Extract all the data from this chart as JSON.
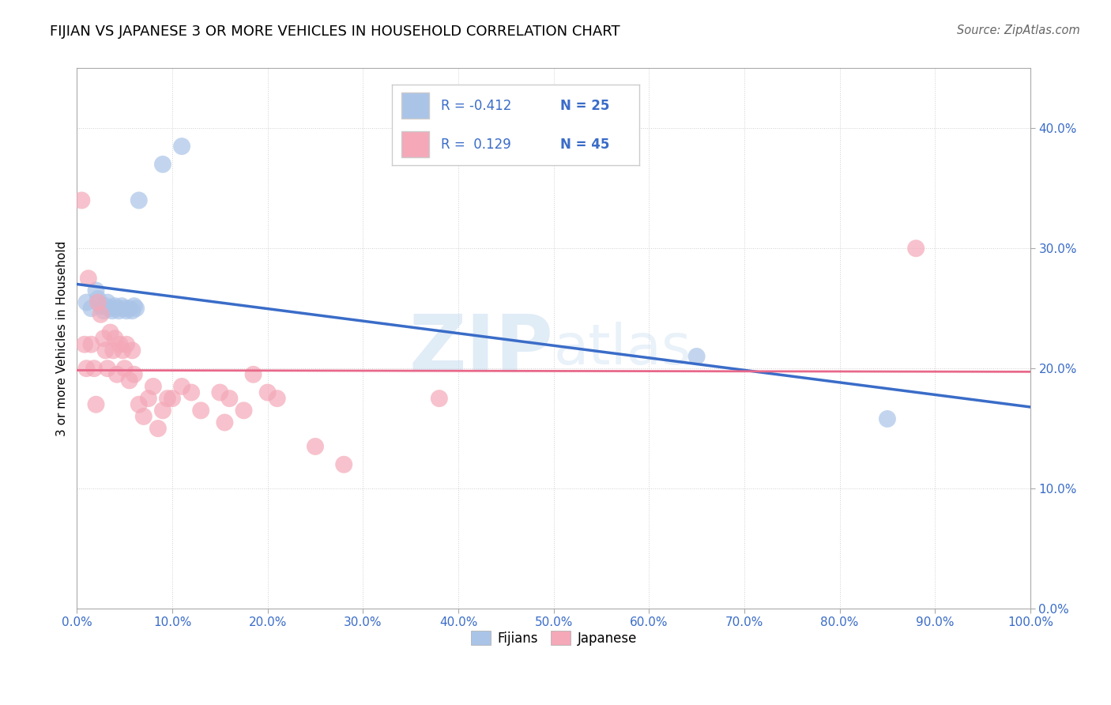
{
  "title": "FIJIAN VS JAPANESE 3 OR MORE VEHICLES IN HOUSEHOLD CORRELATION CHART",
  "source": "Source: ZipAtlas.com",
  "ylabel": "3 or more Vehicles in Household",
  "watermark_zip": "ZIP",
  "watermark_atlas": "atlas",
  "fijian_R": -0.412,
  "fijian_N": 25,
  "japanese_R": 0.129,
  "japanese_N": 45,
  "fijian_color": "#aac4e8",
  "japanese_color": "#f4a8b8",
  "fijian_line_color": "#3a6cc8",
  "japanese_line_color": "#e8688a",
  "legend_text_color": "#3a6cc8",
  "tick_color": "#3a6cc8",
  "grid_color": "#d0d0d0",
  "xlim": [
    0.0,
    1.0
  ],
  "ylim": [
    0.0,
    0.45
  ],
  "xtick_vals": [
    0.0,
    0.1,
    0.2,
    0.3,
    0.4,
    0.5,
    0.6,
    0.7,
    0.8,
    0.9,
    1.0
  ],
  "ytick_vals": [
    0.0,
    0.1,
    0.2,
    0.3,
    0.4
  ],
  "fijian_x": [
    0.01,
    0.015,
    0.02,
    0.022,
    0.025,
    0.028,
    0.03,
    0.032,
    0.035,
    0.037,
    0.04,
    0.042,
    0.044,
    0.047,
    0.05,
    0.052,
    0.055,
    0.058,
    0.06,
    0.062,
    0.065,
    0.09,
    0.11,
    0.65,
    0.85
  ],
  "fijian_y": [
    0.255,
    0.25,
    0.265,
    0.258,
    0.252,
    0.248,
    0.252,
    0.255,
    0.25,
    0.248,
    0.252,
    0.25,
    0.248,
    0.252,
    0.25,
    0.248,
    0.25,
    0.248,
    0.252,
    0.25,
    0.34,
    0.37,
    0.385,
    0.21,
    0.158
  ],
  "japanese_x": [
    0.005,
    0.008,
    0.01,
    0.012,
    0.015,
    0.018,
    0.02,
    0.022,
    0.025,
    0.028,
    0.03,
    0.032,
    0.035,
    0.038,
    0.04,
    0.042,
    0.045,
    0.048,
    0.05,
    0.052,
    0.055,
    0.058,
    0.06,
    0.065,
    0.07,
    0.075,
    0.08,
    0.085,
    0.09,
    0.095,
    0.1,
    0.11,
    0.12,
    0.13,
    0.15,
    0.155,
    0.16,
    0.175,
    0.185,
    0.2,
    0.21,
    0.25,
    0.28,
    0.38,
    0.88
  ],
  "japanese_y": [
    0.34,
    0.22,
    0.2,
    0.275,
    0.22,
    0.2,
    0.17,
    0.255,
    0.245,
    0.225,
    0.215,
    0.2,
    0.23,
    0.215,
    0.225,
    0.195,
    0.22,
    0.215,
    0.2,
    0.22,
    0.19,
    0.215,
    0.195,
    0.17,
    0.16,
    0.175,
    0.185,
    0.15,
    0.165,
    0.175,
    0.175,
    0.185,
    0.18,
    0.165,
    0.18,
    0.155,
    0.175,
    0.165,
    0.195,
    0.18,
    0.175,
    0.135,
    0.12,
    0.175,
    0.3
  ]
}
